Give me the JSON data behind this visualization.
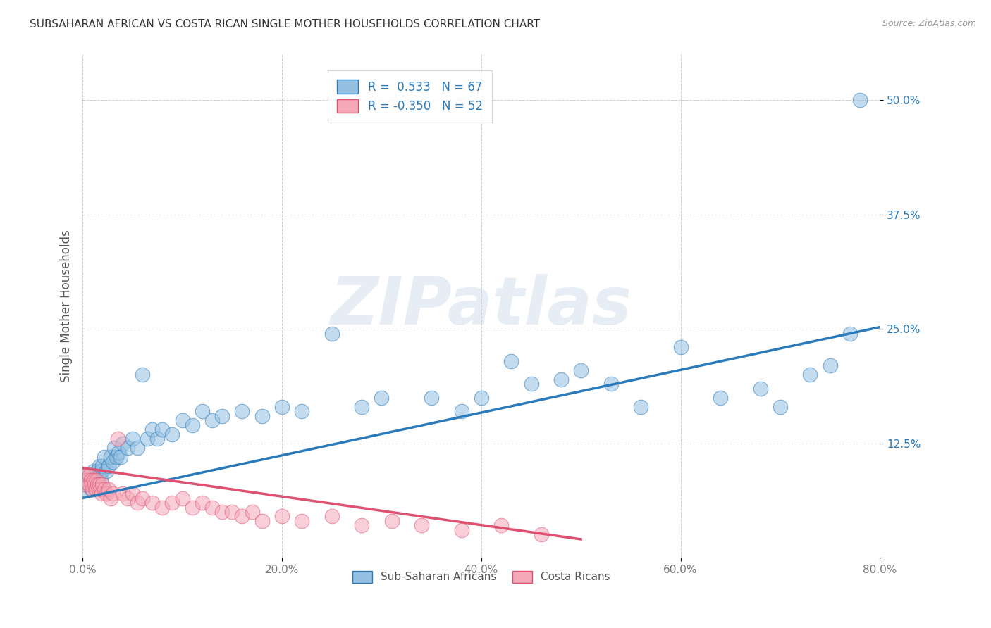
{
  "title": "SUBSAHARAN AFRICAN VS COSTA RICAN SINGLE MOTHER HOUSEHOLDS CORRELATION CHART",
  "source": "Source: ZipAtlas.com",
  "ylabel": "Single Mother Households",
  "xlim": [
    0.0,
    0.8
  ],
  "ylim": [
    0.0,
    0.55
  ],
  "x_ticks": [
    0.0,
    0.2,
    0.4,
    0.6,
    0.8
  ],
  "x_tick_labels": [
    "0.0%",
    "20.0%",
    "40.0%",
    "60.0%",
    "80.0%"
  ],
  "y_ticks": [
    0.0,
    0.125,
    0.25,
    0.375,
    0.5
  ],
  "y_tick_labels": [
    "",
    "12.5%",
    "25.0%",
    "37.5%",
    "50.0%"
  ],
  "blue_color": "#93bfe0",
  "pink_color": "#f4a8b8",
  "blue_line_color": "#2b7bba",
  "pink_line_color": "#e05070",
  "legend_label_blue": "R =  0.533   N = 67",
  "legend_label_pink": "R = -0.350   N = 52",
  "legend_bottom_blue": "Sub-Saharan Africans",
  "legend_bottom_pink": "Costa Ricans",
  "watermark": "ZIPatlas",
  "blue_scatter_x": [
    0.002,
    0.003,
    0.004,
    0.005,
    0.006,
    0.007,
    0.008,
    0.009,
    0.01,
    0.011,
    0.012,
    0.013,
    0.014,
    0.015,
    0.016,
    0.017,
    0.018,
    0.019,
    0.02,
    0.022,
    0.024,
    0.026,
    0.028,
    0.03,
    0.032,
    0.034,
    0.036,
    0.038,
    0.04,
    0.045,
    0.05,
    0.055,
    0.06,
    0.065,
    0.07,
    0.075,
    0.08,
    0.09,
    0.1,
    0.11,
    0.12,
    0.13,
    0.14,
    0.16,
    0.18,
    0.2,
    0.22,
    0.25,
    0.28,
    0.3,
    0.35,
    0.38,
    0.4,
    0.43,
    0.45,
    0.48,
    0.5,
    0.53,
    0.56,
    0.6,
    0.64,
    0.68,
    0.7,
    0.73,
    0.75,
    0.77,
    0.78
  ],
  "blue_scatter_y": [
    0.075,
    0.08,
    0.085,
    0.09,
    0.08,
    0.085,
    0.09,
    0.075,
    0.085,
    0.095,
    0.08,
    0.09,
    0.085,
    0.095,
    0.09,
    0.1,
    0.085,
    0.095,
    0.1,
    0.11,
    0.095,
    0.1,
    0.11,
    0.105,
    0.12,
    0.11,
    0.115,
    0.11,
    0.125,
    0.12,
    0.13,
    0.12,
    0.2,
    0.13,
    0.14,
    0.13,
    0.14,
    0.135,
    0.15,
    0.145,
    0.16,
    0.15,
    0.155,
    0.16,
    0.155,
    0.165,
    0.16,
    0.245,
    0.165,
    0.175,
    0.175,
    0.16,
    0.175,
    0.215,
    0.19,
    0.195,
    0.205,
    0.19,
    0.165,
    0.23,
    0.175,
    0.185,
    0.165,
    0.2,
    0.21,
    0.245,
    0.5
  ],
  "pink_scatter_x": [
    0.001,
    0.002,
    0.003,
    0.004,
    0.005,
    0.006,
    0.007,
    0.008,
    0.009,
    0.01,
    0.011,
    0.012,
    0.013,
    0.014,
    0.015,
    0.016,
    0.017,
    0.018,
    0.019,
    0.02,
    0.022,
    0.024,
    0.026,
    0.028,
    0.03,
    0.035,
    0.04,
    0.045,
    0.05,
    0.055,
    0.06,
    0.07,
    0.08,
    0.09,
    0.1,
    0.11,
    0.12,
    0.13,
    0.14,
    0.15,
    0.16,
    0.17,
    0.18,
    0.2,
    0.22,
    0.25,
    0.28,
    0.31,
    0.34,
    0.38,
    0.42,
    0.46
  ],
  "pink_scatter_y": [
    0.09,
    0.085,
    0.08,
    0.09,
    0.085,
    0.08,
    0.09,
    0.085,
    0.08,
    0.075,
    0.085,
    0.08,
    0.075,
    0.085,
    0.08,
    0.075,
    0.08,
    0.075,
    0.07,
    0.08,
    0.075,
    0.07,
    0.075,
    0.065,
    0.07,
    0.13,
    0.07,
    0.065,
    0.07,
    0.06,
    0.065,
    0.06,
    0.055,
    0.06,
    0.065,
    0.055,
    0.06,
    0.055,
    0.05,
    0.05,
    0.045,
    0.05,
    0.04,
    0.045,
    0.04,
    0.045,
    0.035,
    0.04,
    0.035,
    0.03,
    0.035,
    0.025
  ],
  "blue_line_x0": 0.0,
  "blue_line_y0": 0.065,
  "blue_line_x1": 0.8,
  "blue_line_y1": 0.252,
  "pink_line_x0": 0.0,
  "pink_line_y0": 0.098,
  "pink_line_x1": 0.5,
  "pink_line_y1": 0.02
}
